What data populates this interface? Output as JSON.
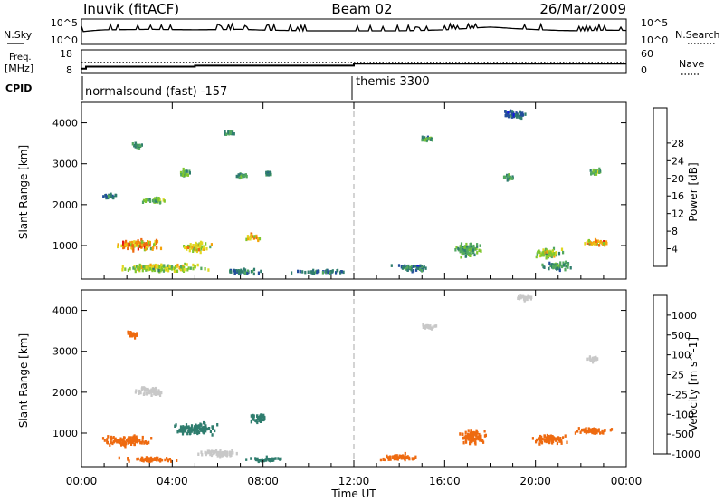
{
  "header": {
    "station": "Inuvik (fitACF)",
    "beam": "Beam 02",
    "date": "26/Mar/2009"
  },
  "param_panels": {
    "nsky_label": "N.Sky",
    "nsky_ticks": [
      "10^5",
      "10^0"
    ],
    "nsearch_label": "N.Search",
    "nsearch_ticks": [
      "10^5",
      "10^0"
    ],
    "freq_label_1": "Freq.",
    "freq_label_2": "[MHz]",
    "freq_ticks": [
      "18",
      "8"
    ],
    "nave_label": "Nave",
    "nave_ticks": [
      "60",
      "0"
    ],
    "cpid_label": "CPID",
    "cpid_segments": [
      {
        "name": "normalsound (fast) -157",
        "start_hour": 0,
        "end_hour": 11.9
      },
      {
        "name": "themis 3300",
        "start_hour": 11.9,
        "end_hour": 24
      }
    ]
  },
  "colors": {
    "power_scale": [
      "#1515e6",
      "#234e9c",
      "#2f7d6e",
      "#52a860",
      "#7fc72f",
      "#e0d820",
      "#f5a20b",
      "#ee6a10",
      "#e31515"
    ],
    "velocity_scale": [
      "#e31515",
      "#ee6a10",
      "#f5a20b",
      "#c8c8c8",
      "#52c23a",
      "#2f7d6e",
      "#234e9c",
      "#1515e6"
    ]
  },
  "chart_data": [
    {
      "type": "line",
      "title": "N.Sky / N.Search",
      "ylabel": "N.Sky",
      "y2label": "N.Search",
      "yscale": "log",
      "ylim": [
        1,
        100000
      ],
      "x_hours": [
        0,
        1,
        2,
        3,
        4,
        5,
        6,
        7,
        8,
        9,
        10,
        11,
        12,
        13,
        14,
        15,
        16,
        17,
        18,
        19,
        20,
        21,
        22,
        23,
        24
      ],
      "series": [
        {
          "name": "N.Sky",
          "values": [
            300,
            800,
            900,
            1000,
            900,
            800,
            900,
            1000,
            700,
            600,
            500,
            500,
            500,
            500,
            500,
            600,
            800,
            1500,
            3000,
            1500,
            900,
            600,
            500,
            700,
            600
          ]
        }
      ]
    },
    {
      "type": "line",
      "title": "Freq. / Nave",
      "ylabel": "Freq. [MHz]",
      "y2label": "Nave",
      "ylim": [
        8,
        18
      ],
      "y2lim": [
        0,
        60
      ],
      "x_hours": [
        0,
        0.2,
        4,
        5,
        11.9,
        12,
        24
      ],
      "series": [
        {
          "name": "Freq.",
          "values": [
            9.5,
            10.5,
            10.5,
            11,
            11,
            12,
            12
          ]
        },
        {
          "name": "Nave",
          "values": [
            28,
            28,
            28,
            28,
            28,
            28,
            28
          ]
        }
      ]
    },
    {
      "type": "heatmap",
      "title": "Power",
      "ylabel": "Slant Range [km]",
      "colorbar_label": "Power [dB]",
      "colorbar_ticks": [
        "4",
        "8",
        "12",
        "16",
        "20",
        "24",
        "28"
      ],
      "colorbar_range": [
        0,
        30
      ],
      "yticks": [
        "1000",
        "2000",
        "3000",
        "4000"
      ],
      "ylim": [
        180,
        4500
      ],
      "xlim_hours": [
        0,
        24
      ],
      "blobs": [
        {
          "t": 2.5,
          "r": 1000,
          "dt": 2.5,
          "dr": 350,
          "value": 22
        },
        {
          "t": 5.0,
          "r": 950,
          "dt": 1.6,
          "dr": 300,
          "value": 18
        },
        {
          "t": 7.5,
          "r": 1200,
          "dt": 0.8,
          "dr": 250,
          "value": 20
        },
        {
          "t": 3.5,
          "r": 450,
          "dt": 4.5,
          "dr": 250,
          "value": 16
        },
        {
          "t": 7.0,
          "r": 350,
          "dt": 2.0,
          "dr": 150,
          "value": 8
        },
        {
          "t": 1.2,
          "r": 2200,
          "dt": 0.8,
          "dr": 150,
          "value": 8
        },
        {
          "t": 3.2,
          "r": 2100,
          "dt": 1.5,
          "dr": 200,
          "value": 13
        },
        {
          "t": 4.5,
          "r": 2750,
          "dt": 0.6,
          "dr": 250,
          "value": 12
        },
        {
          "t": 2.4,
          "r": 3450,
          "dt": 0.5,
          "dr": 200,
          "value": 10
        },
        {
          "t": 7.0,
          "r": 2700,
          "dt": 0.7,
          "dr": 150,
          "value": 10
        },
        {
          "t": 6.5,
          "r": 3750,
          "dt": 0.6,
          "dr": 150,
          "value": 10
        },
        {
          "t": 8.2,
          "r": 2750,
          "dt": 0.3,
          "dr": 100,
          "value": 8
        },
        {
          "t": 10.5,
          "r": 350,
          "dt": 3.0,
          "dr": 120,
          "value": 8
        },
        {
          "t": 15.2,
          "r": 3600,
          "dt": 0.9,
          "dr": 150,
          "value": 10
        },
        {
          "t": 17.0,
          "r": 900,
          "dt": 1.5,
          "dr": 450,
          "value": 12
        },
        {
          "t": 20.5,
          "r": 800,
          "dt": 1.8,
          "dr": 300,
          "value": 16
        },
        {
          "t": 22.7,
          "r": 1050,
          "dt": 1.6,
          "dr": 200,
          "value": 20
        },
        {
          "t": 21.0,
          "r": 500,
          "dt": 2.0,
          "dr": 250,
          "value": 10
        },
        {
          "t": 22.6,
          "r": 2800,
          "dt": 0.7,
          "dr": 180,
          "value": 12
        },
        {
          "t": 18.8,
          "r": 2650,
          "dt": 0.6,
          "dr": 200,
          "value": 10
        },
        {
          "t": 19.0,
          "r": 4200,
          "dt": 1.5,
          "dr": 250,
          "value": 6
        },
        {
          "t": 14.5,
          "r": 450,
          "dt": 2.0,
          "dr": 200,
          "value": 8
        }
      ]
    },
    {
      "type": "heatmap",
      "title": "Velocity",
      "ylabel": "Slant Range [km]",
      "colorbar_label": "Velocity [m s^-1]",
      "colorbar_ticks": [
        "1000",
        "500",
        "100",
        "25",
        "-25",
        "-100",
        "-500",
        "-1000"
      ],
      "yticks": [
        "1000",
        "2000",
        "3000",
        "4000"
      ],
      "ylim": [
        180,
        4500
      ],
      "xlim_hours": [
        0,
        24
      ],
      "xticks": [
        "00:00",
        "04:00",
        "08:00",
        "12:00",
        "16:00",
        "20:00",
        "00:00"
      ],
      "xlabel": "Time UT",
      "blobs": [
        {
          "t": 2.0,
          "r": 800,
          "dt": 2.5,
          "dr": 350,
          "value": -200
        },
        {
          "t": 5.0,
          "r": 1100,
          "dt": 2.5,
          "dr": 350,
          "value": 300
        },
        {
          "t": 7.8,
          "r": 1350,
          "dt": 1.0,
          "dr": 300,
          "value": 300
        },
        {
          "t": 6.0,
          "r": 500,
          "dt": 2.5,
          "dr": 200,
          "value": 0
        },
        {
          "t": 3.0,
          "r": 350,
          "dt": 3.0,
          "dr": 150,
          "value": -300
        },
        {
          "t": 8.0,
          "r": 350,
          "dt": 2.0,
          "dr": 150,
          "value": 300
        },
        {
          "t": 3.0,
          "r": 2000,
          "dt": 1.5,
          "dr": 300,
          "value": 0
        },
        {
          "t": 2.2,
          "r": 3400,
          "dt": 0.6,
          "dr": 200,
          "value": -200
        },
        {
          "t": 15.2,
          "r": 3600,
          "dt": 1.0,
          "dr": 150,
          "value": 0
        },
        {
          "t": 17.2,
          "r": 900,
          "dt": 1.5,
          "dr": 450,
          "value": -300
        },
        {
          "t": 20.5,
          "r": 850,
          "dt": 1.8,
          "dr": 300,
          "value": -300
        },
        {
          "t": 22.5,
          "r": 1050,
          "dt": 2.0,
          "dr": 200,
          "value": -200
        },
        {
          "t": 22.5,
          "r": 2800,
          "dt": 0.7,
          "dr": 180,
          "value": 0
        },
        {
          "t": 19.5,
          "r": 4300,
          "dt": 1.0,
          "dr": 200,
          "value": 0
        },
        {
          "t": 14.0,
          "r": 400,
          "dt": 2.0,
          "dr": 200,
          "value": -200
        }
      ]
    }
  ]
}
